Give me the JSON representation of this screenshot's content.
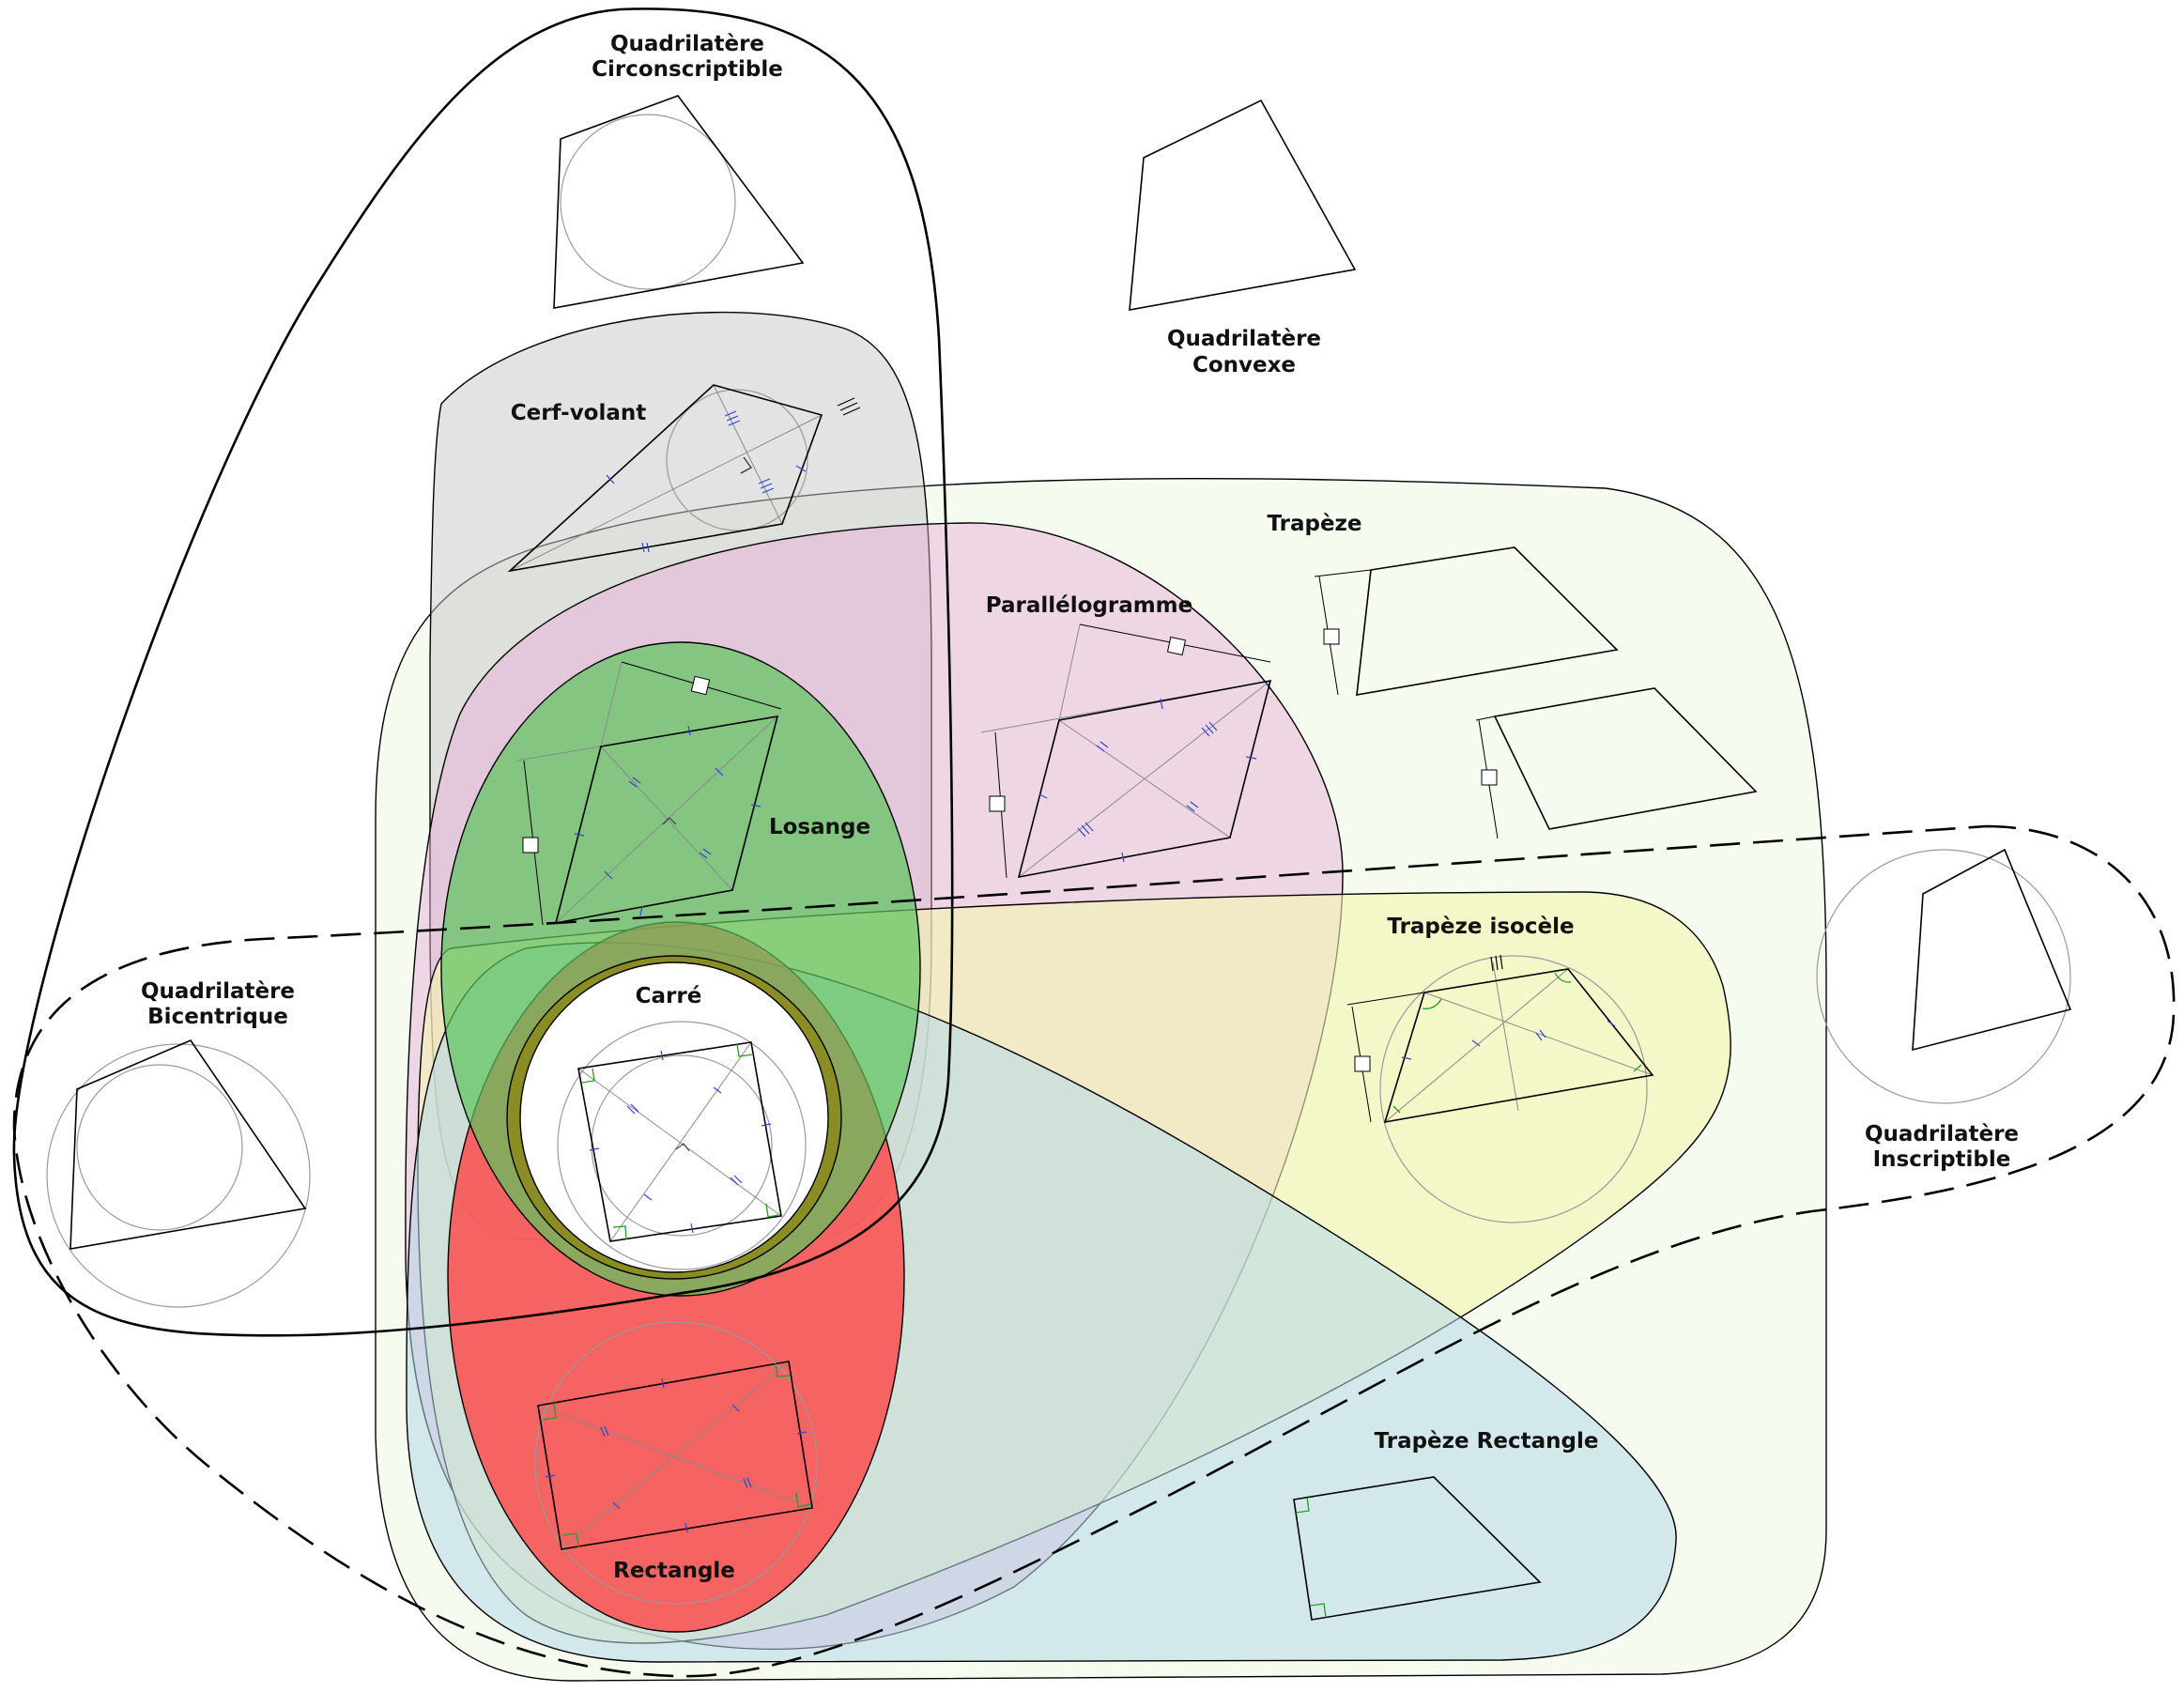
{
  "diagram": {
    "labels": {
      "circonscriptible": [
        "Quadrilatère",
        "Circonscriptible"
      ],
      "convexe": [
        "Quadrilatère",
        "Convexe"
      ],
      "cerf_volant": "Cerf-volant",
      "trapeze": "Trapèze",
      "parallelogramme": "Parallélogramme",
      "losange": "Losange",
      "carre": "Carré",
      "trapeze_isocele": "Trapèze isocèle",
      "bicentrique": [
        "Quadrilatère",
        "Bicentrique"
      ],
      "inscriptible": [
        "Quadrilatère",
        "Inscriptible"
      ],
      "rectangle": "Rectangle",
      "trapeze_rectangle": "Trapèze Rectangle"
    },
    "colors": {
      "trapeze_region": "#f5fbee",
      "cerf_volant_region": "#c8c8c8",
      "parallelogramme_region": "#e9a8da",
      "trapeze_isocele_region": "#f3f7b0",
      "trapeze_rectangle_region": "#b4d8ea",
      "losange_region": "#5cc45c",
      "rectangle_region": "#ff4040",
      "carre_ring": "#8a8a1e",
      "carre_core": "#ffffff",
      "tick_marks": "#3344cc",
      "right_angle_marks": "#2a9a2a"
    }
  }
}
